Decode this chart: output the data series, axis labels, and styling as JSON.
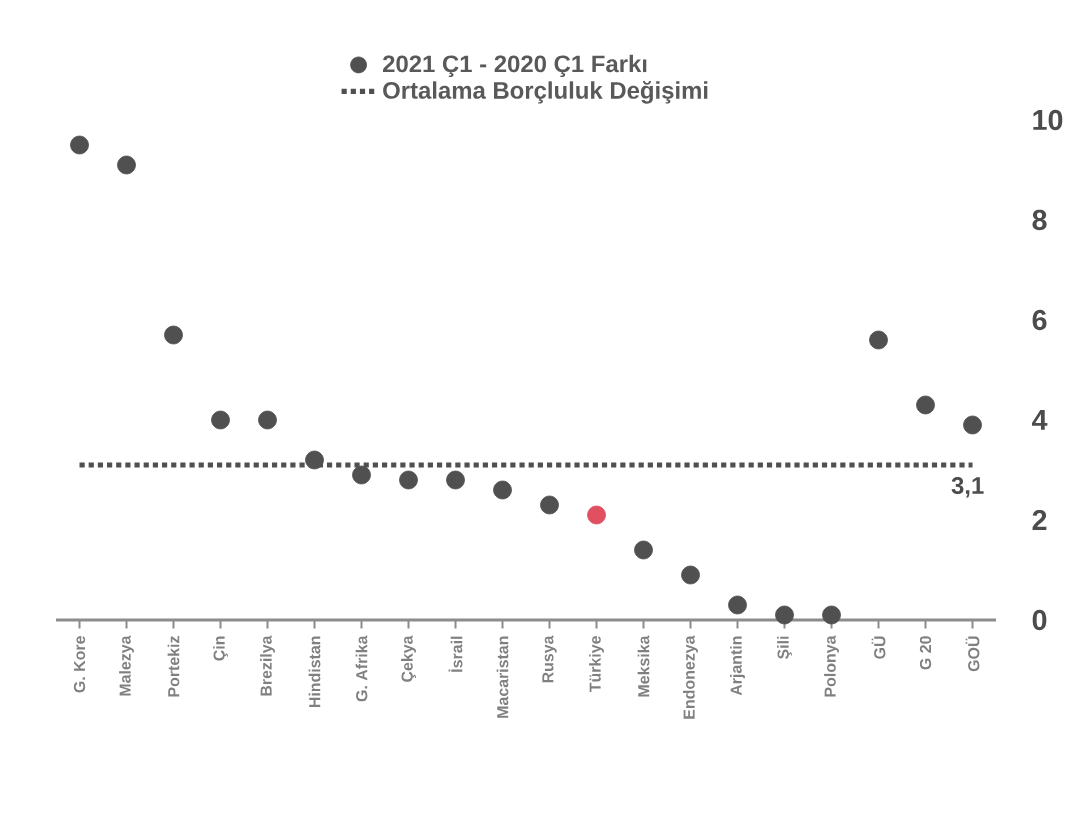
{
  "chart_data": {
    "type": "scatter",
    "categories": [
      "G. Kore",
      "Malezya",
      "Portekiz",
      "Çin",
      "Brezilya",
      "Hindistan",
      "G. Afrika",
      "Çekya",
      "İsrail",
      "Macaristan",
      "Rusya",
      "Türkiye",
      "Meksika",
      "Endonezya",
      "Arjantin",
      "Şili",
      "Polonya",
      "GÜ",
      "G 20",
      "GOÜ"
    ],
    "series": [
      {
        "name": "2021 Ç1 - 2020 Ç1 Farkı",
        "marker": "circle",
        "color": "#505050",
        "colors": [
          "#505050",
          "#505050",
          "#505050",
          "#505050",
          "#505050",
          "#505050",
          "#505050",
          "#505050",
          "#505050",
          "#505050",
          "#505050",
          "#e05060",
          "#505050",
          "#505050",
          "#505050",
          "#505050",
          "#505050",
          "#505050",
          "#505050",
          "#505050"
        ],
        "values": [
          9.5,
          9.1,
          5.7,
          4.0,
          4.0,
          3.2,
          2.9,
          2.8,
          2.8,
          2.6,
          2.3,
          2.1,
          1.4,
          0.9,
          0.3,
          0.1,
          0.1,
          5.6,
          4.3,
          3.9
        ]
      },
      {
        "name": "Ortalama Borçluluk Değişimi",
        "type": "line",
        "color": "#505050",
        "line_style": "dotted",
        "marker": "none",
        "values": [
          3.1,
          3.1,
          3.1,
          3.1,
          3.1,
          3.1,
          3.1,
          3.1,
          3.1,
          3.1,
          3.1,
          3.1,
          3.1,
          3.1,
          3.1,
          3.1,
          3.1,
          3.1,
          3.1,
          3.1
        ]
      }
    ],
    "annotations": [
      {
        "text": "3,1",
        "x": "GOÜ",
        "y": 3.1
      }
    ],
    "ylim": [
      0,
      10
    ],
    "yticks": [
      0,
      2,
      4,
      6,
      8,
      10
    ],
    "legend": "top",
    "grid": false
  }
}
